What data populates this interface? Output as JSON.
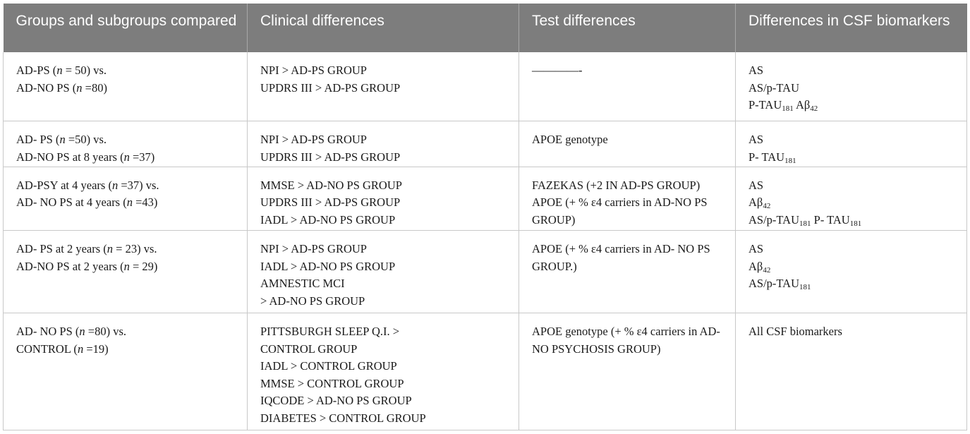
{
  "header": {
    "col1": "Groups and subgroups compared",
    "col2": "Clinical differences",
    "col3": "Test differences",
    "col4": "Differences in CSF biomarkers"
  },
  "rows": [
    {
      "groups": {
        "l1": {
          "a": "AD-PS (",
          "n": "n",
          "b": " = 50) vs."
        },
        "l2": {
          "a": "AD-NO PS (",
          "n": "n",
          "b": " =80)"
        }
      },
      "clinical": [
        "NPI > AD-PS GROUP",
        "UPDRS III > AD-PS GROUP"
      ],
      "test": "————-",
      "csf": {
        "l1": "AS",
        "l2": "AS/p-TAU",
        "l3": {
          "a": "P-TAU",
          "sub": "181",
          "b": " Aβ",
          "sub2": "42"
        }
      }
    },
    {
      "groups": {
        "l1": {
          "a": "AD- PS (",
          "n": "n",
          "b": " =50) vs."
        },
        "l2": {
          "a": "AD-NO PS at 8 years (",
          "n": "n",
          "b": " =37)"
        }
      },
      "clinical": [
        "NPI > AD-PS GROUP",
        "UPDRS III > AD-PS GROUP"
      ],
      "test": "APOE genotype",
      "csf": {
        "l1": "AS",
        "l2": {
          "a": "P- TAU",
          "sub": "181"
        }
      }
    },
    {
      "groups": {
        "l1": {
          "a": "AD-PSY at 4 years (",
          "n": "n",
          "b": " =37) vs."
        },
        "l2": {
          "a": "AD- NO PS at 4 years (",
          "n": "n",
          "b": " =43)"
        }
      },
      "clinical": [
        "MMSE > AD-NO PS GROUP",
        "UPDRS III > AD-PS GROUP",
        "IADL > AD-NO PS GROUP"
      ],
      "test": [
        "FAZEKAS (+2 IN AD-PS GROUP)",
        "APOE (+ % ε4 carriers in AD-NO PS GROUP)"
      ],
      "csf": {
        "l1": "AS",
        "l2": {
          "a": "Aβ",
          "sub": "42"
        },
        "l3": {
          "a": "AS/p-TAU",
          "sub": "181",
          "b": " P- TAU",
          "sub2": "181"
        }
      }
    },
    {
      "groups": {
        "l1": {
          "a": "AD- PS at 2 years (",
          "n": "n",
          "b": " = 23) vs."
        },
        "l2": {
          "a": "AD-NO PS at 2 years (",
          "n": "n",
          "b": " = 29)"
        }
      },
      "clinical": [
        "NPI > AD-PS GROUP",
        "IADL > AD-NO PS GROUP",
        "AMNESTIC MCI",
        "> AD-NO PS GROUP"
      ],
      "test": "APOE (+ % ε4 carriers in AD- NO PS GROUP.)",
      "csf": {
        "l1": "AS",
        "l2": {
          "a": "Aβ",
          "sub": "42"
        },
        "l3": {
          "a": "AS/p-TAU",
          "sub": "181"
        }
      }
    },
    {
      "groups": {
        "l1": {
          "a": "AD- NO PS (",
          "n": "n",
          "b": " =80) vs."
        },
        "l2": {
          "a": "CONTROL (",
          "n": "n",
          "b": " =19)"
        }
      },
      "clinical": [
        "PITTSBURGH SLEEP Q.I. >",
        "CONTROL GROUP",
        "IADL > CONTROL GROUP",
        "MMSE > CONTROL GROUP",
        "IQCODE > AD-NO PS GROUP",
        "DIABETES > CONTROL GROUP"
      ],
      "test": "APOE genotype (+ % ε4 carriers in AD- NO PSYCHOSIS GROUP)",
      "csf": {
        "l1": "All CSF biomarkers"
      }
    }
  ]
}
